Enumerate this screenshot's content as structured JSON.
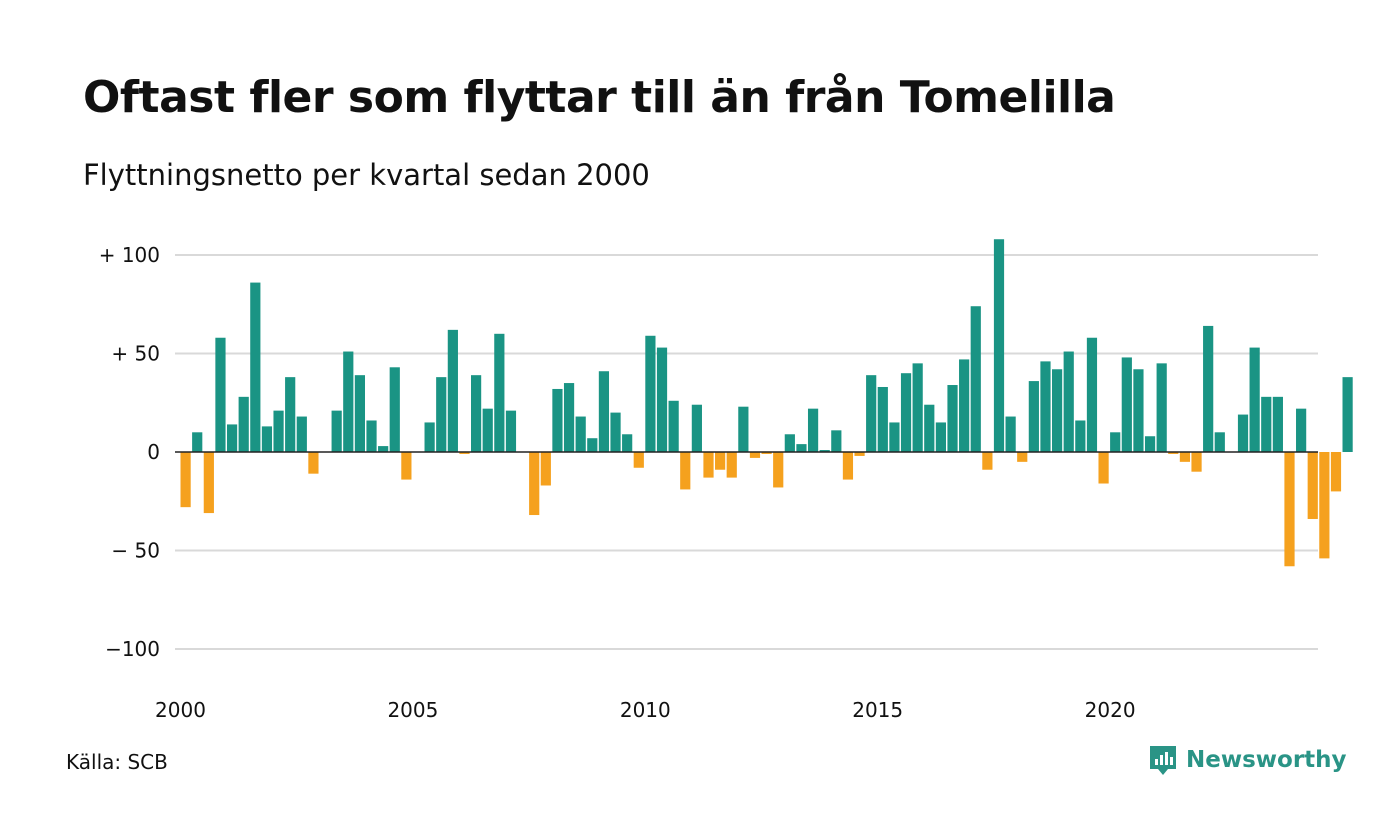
{
  "title": "Oftast fler som flyttar till än från Tomelilla",
  "subtitle": "Flyttningsnetto per kvartal sedan 2000",
  "source": "Källa: SCB",
  "brand": {
    "name": "Newsworthy",
    "icon": "newsworthy-logo-icon",
    "color": "#2a9486"
  },
  "colors": {
    "positive": "#1a9484",
    "negative": "#f5a11e",
    "grid": "#d9d9d9",
    "zero_line": "#222222"
  },
  "chart_data": {
    "type": "bar",
    "title": "Oftast fler som flyttar till än från Tomelilla",
    "subtitle": "Flyttningsnetto per kvartal sedan 2000",
    "xlabel": "",
    "ylabel": "",
    "ylim": [
      -100,
      110
    ],
    "yticks": [
      100,
      50,
      0,
      -50,
      -100
    ],
    "ytick_labels": [
      "+ 100",
      "+  50",
      "0",
      "− 50",
      "−100"
    ],
    "xticks": [
      "2000",
      "2005",
      "2010",
      "2015",
      "2020"
    ],
    "grid": true,
    "legend": false,
    "start": "2000 Q1",
    "frequency": "quarterly",
    "values": [
      -28,
      10,
      -31,
      58,
      14,
      28,
      86,
      13,
      21,
      38,
      18,
      -11,
      0,
      21,
      51,
      39,
      16,
      3,
      43,
      -14,
      0,
      15,
      38,
      62,
      -1,
      39,
      22,
      60,
      21,
      0,
      -32,
      -17,
      32,
      35,
      18,
      7,
      41,
      20,
      9,
      -8,
      59,
      53,
      26,
      -19,
      24,
      -13,
      -9,
      -13,
      23,
      -3,
      -1,
      -18,
      9,
      4,
      22,
      1,
      11,
      -14,
      -2,
      39,
      33,
      15,
      40,
      45,
      24,
      15,
      34,
      47,
      74,
      -9,
      108,
      18,
      -5,
      36,
      46,
      42,
      51,
      16,
      58,
      -16,
      10,
      48,
      42,
      8,
      45,
      -1,
      -5,
      -10,
      64,
      10,
      0,
      19,
      53,
      28,
      28,
      -58,
      22,
      -34,
      -54,
      -20,
      38
    ]
  }
}
